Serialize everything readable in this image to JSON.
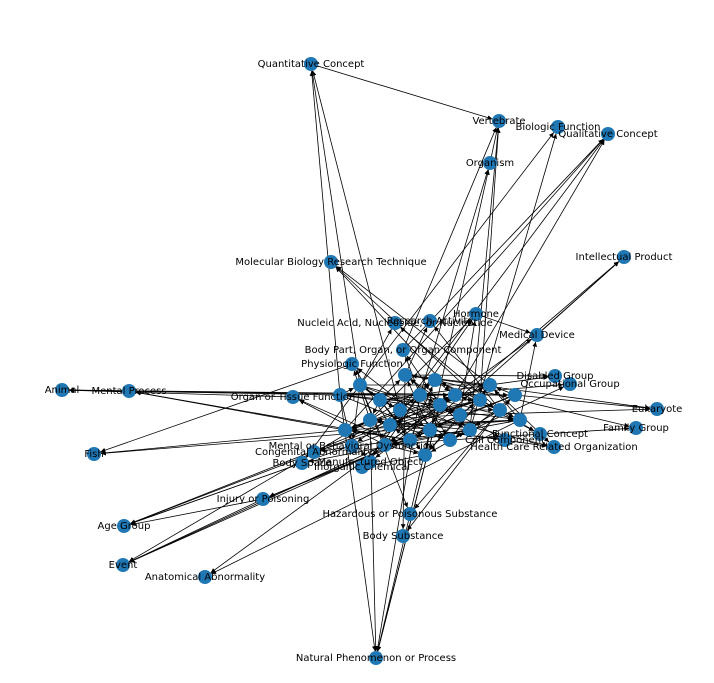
{
  "nodes": [
    {
      "label": "Quantitative Concept"
    },
    {
      "label": "Vertebrate"
    },
    {
      "label": "Biologic Function"
    },
    {
      "label": "Qualitative Concept"
    },
    {
      "label": "Organism"
    },
    {
      "label": "Intellectual Product"
    },
    {
      "label": "Molecular Biology Research Technique"
    },
    {
      "label": "Nucleic Acid, Nucleoside, or Nucleotide"
    },
    {
      "label": "Research Activity"
    },
    {
      "label": "Hormone"
    },
    {
      "label": "Medical Device"
    },
    {
      "label": "Body Part, Organ, or Organ Component"
    },
    {
      "label": "Physiologic Function"
    },
    {
      "label": "Disabled Group"
    },
    {
      "label": "Occupational Group"
    },
    {
      "label": "Animal"
    },
    {
      "label": "Mental Process"
    },
    {
      "label": "Organ or Tissue Function"
    },
    {
      "label": "Eukaryote"
    },
    {
      "label": "Family Group"
    },
    {
      "label": "Functional Concept"
    },
    {
      "label": "Health Care Related Organization"
    },
    {
      "label": "Cell Component"
    },
    {
      "label": "Fish"
    },
    {
      "label": "Mental or Behavioral Dysfunction"
    },
    {
      "label": "Congenital Abnormality"
    },
    {
      "label": "Body Space"
    },
    {
      "label": "Manufactured Object"
    },
    {
      "label": "Inorganic Chemical"
    },
    {
      "label": "Injury or Poisoning"
    },
    {
      "label": "Age Group"
    },
    {
      "label": "Hazardous or Poisonous Substance"
    },
    {
      "label": "Body Substance"
    },
    {
      "label": "Event"
    },
    {
      "label": "Anatomical Abnormality"
    },
    {
      "label": "Natural Phenomenon or Process"
    }
  ]
}
